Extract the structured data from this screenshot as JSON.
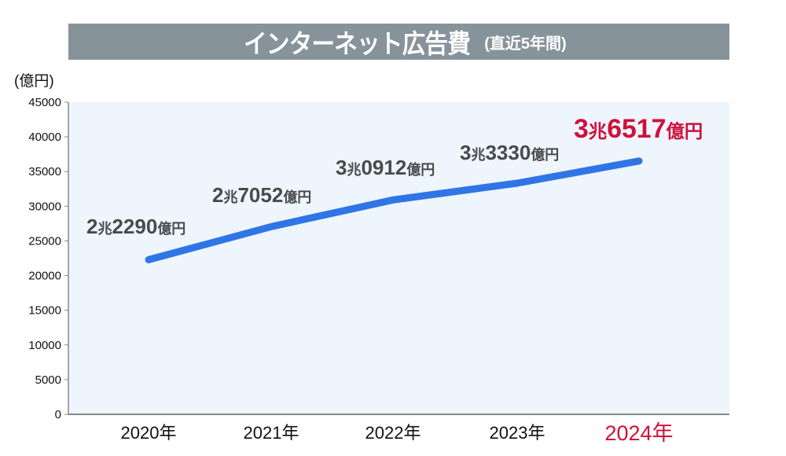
{
  "title": {
    "main": "インターネット広告費",
    "sub": "(直近5年間)"
  },
  "unit_label": "(億円)",
  "colors": {
    "title_bg": "#87939a",
    "plot_bg": "#eef5fd",
    "line": "#2f75e6",
    "highlight": "#d0103a",
    "label": "#4a4a4a"
  },
  "labels": [
    {
      "big1": "2",
      "small1": "兆",
      "big2": "2290",
      "small2": "億円"
    },
    {
      "big1": "2",
      "small1": "兆",
      "big2": "7052",
      "small2": "億円"
    },
    {
      "big1": "3",
      "small1": "兆",
      "big2": "0912",
      "small2": "億円"
    },
    {
      "big1": "3",
      "small1": "兆",
      "big2": "3330",
      "small2": "億円"
    },
    {
      "big1": "3",
      "small1": "兆",
      "big2": "6517",
      "small2": "億円"
    }
  ],
  "chart_data": {
    "type": "line",
    "title": "インターネット広告費(直近5年間)",
    "xlabel": "",
    "ylabel": "(億円)",
    "categories": [
      "2020年",
      "2021年",
      "2022年",
      "2023年",
      "2024年"
    ],
    "series": [
      {
        "name": "インターネット広告費",
        "values": [
          22290,
          27052,
          30912,
          33330,
          36517
        ]
      }
    ],
    "data_labels": [
      "2兆2290億円",
      "2兆7052億円",
      "3兆0912億円",
      "3兆3330億円",
      "3兆6517億円"
    ],
    "yticks": [
      0,
      5000,
      10000,
      15000,
      20000,
      25000,
      30000,
      35000,
      40000,
      45000
    ],
    "ylim": [
      0,
      45000
    ],
    "grid": false,
    "legend": "none",
    "highlight_category": "2024年"
  }
}
